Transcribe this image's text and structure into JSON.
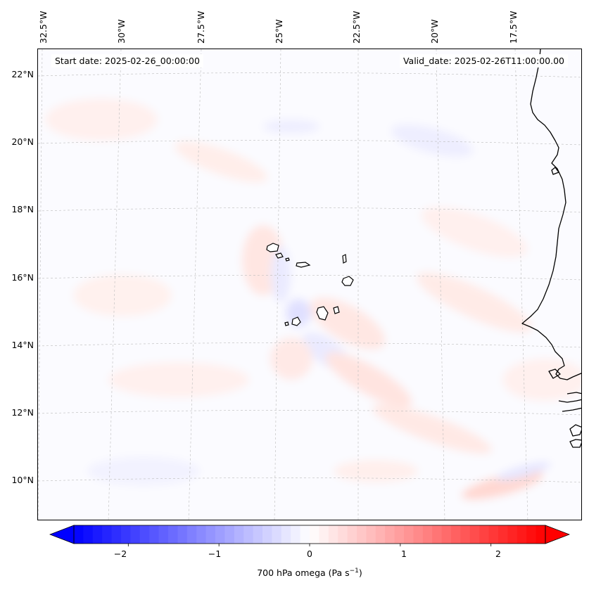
{
  "header": {
    "start_date": "Start date: 2025-02-26_00:00:00",
    "valid_date": "Valid_date: 2025-02-26T11:00:00.00"
  },
  "axes": {
    "lon_labels": [
      "32.5°W",
      "30°W",
      "27.5°W",
      "25°W",
      "22.5°W",
      "20°W",
      "17.5°W"
    ],
    "lat_labels": [
      "22°N",
      "20°N",
      "18°N",
      "16°N",
      "14°N",
      "12°N",
      "10°N"
    ],
    "gridlines": true
  },
  "colorbar": {
    "tick_labels": [
      "−2",
      "−1",
      "0",
      "1",
      "2"
    ],
    "label_main": "700 hPa omega (Pa s",
    "label_sup": "−1",
    "label_end": ")",
    "range": [
      -2.6,
      2.6
    ],
    "cmap": "bwr",
    "extend": "both",
    "color_min": "#0000ff",
    "color_mid": "#ffffff",
    "color_max": "#ff0000"
  },
  "map": {
    "variable": "700 hPa omega",
    "features": [
      "coastline-west-africa",
      "cape-verde-islands"
    ]
  }
}
